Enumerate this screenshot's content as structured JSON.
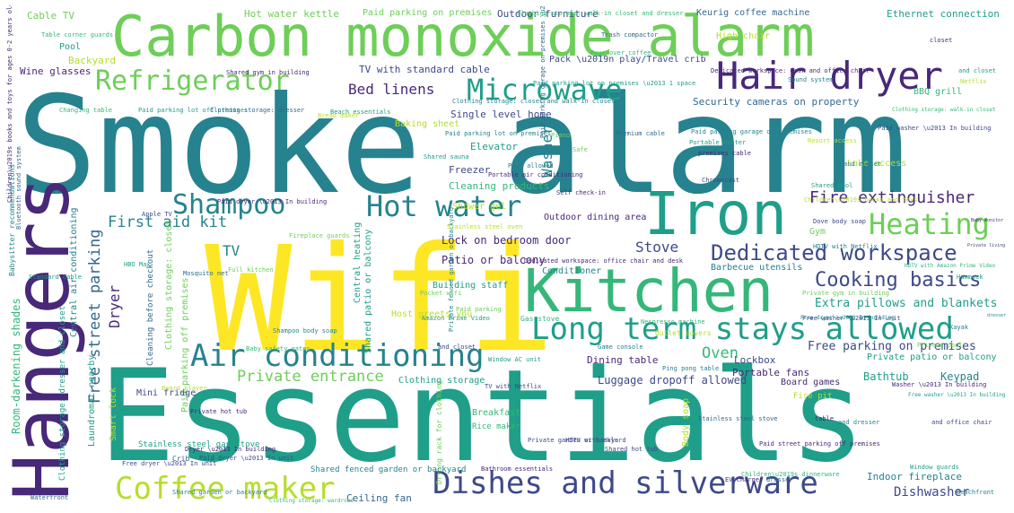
{
  "colors": {
    "c1": "#fde725",
    "c2": "#b5de2b",
    "c3": "#6ece58",
    "c4": "#35b779",
    "c5": "#1f9e89",
    "c6": "#26828e",
    "c7": "#31688e",
    "c8": "#3e4989",
    "c9": "#482878",
    "c10": "#440154"
  },
  "words": [
    {
      "text": "Smoke alarm",
      "color": "c6"
    },
    {
      "text": "Essentials",
      "color": "c5"
    },
    {
      "text": "Wifi",
      "color": "c1"
    },
    {
      "text": "Carbon monoxide alarm",
      "color": "c3"
    },
    {
      "text": "Hangers",
      "color": "c9"
    },
    {
      "text": "Kitchen",
      "color": "c4"
    },
    {
      "text": "Iron",
      "color": "c5"
    },
    {
      "text": "Hair dryer",
      "color": "c9"
    },
    {
      "text": "Long term stays allowed",
      "color": "c5"
    },
    {
      "text": "Dishes and silverware",
      "color": "c8"
    },
    {
      "text": "Air conditioning",
      "color": "c6"
    },
    {
      "text": "Coffee maker",
      "color": "c2"
    },
    {
      "text": "Hot water",
      "color": "c6"
    },
    {
      "text": "Shampoo",
      "color": "c6"
    },
    {
      "text": "Heating",
      "color": "c3"
    },
    {
      "text": "Microwave",
      "color": "c5"
    },
    {
      "text": "Refrigerator",
      "color": "c3"
    },
    {
      "text": "Dedicated workspace",
      "color": "c8"
    },
    {
      "text": "Cooking basics",
      "color": "c8"
    },
    {
      "text": "Fire extinguisher",
      "color": "c9"
    },
    {
      "text": "Free street parking",
      "color": "c7"
    },
    {
      "text": "First aid kit",
      "color": "c6"
    },
    {
      "text": "Private entrance",
      "color": "c3"
    },
    {
      "text": "Bed linens",
      "color": "c9"
    },
    {
      "text": "Oven",
      "color": "c4"
    },
    {
      "text": "Stove",
      "color": "c8"
    },
    {
      "text": "Washer",
      "color": "c6"
    },
    {
      "text": "Dryer",
      "color": "c9"
    },
    {
      "text": "TV",
      "color": "c6"
    },
    {
      "text": "Dishwasher",
      "color": "c8"
    },
    {
      "text": "Extra pillows and blankets",
      "color": "c5"
    },
    {
      "text": "Free parking on premises",
      "color": "c8"
    },
    {
      "text": "Lock on bedroom door",
      "color": "c9"
    },
    {
      "text": "Patio or balcony",
      "color": "c9"
    },
    {
      "text": "Room-darkening shades",
      "color": "c4"
    },
    {
      "text": "Bathtub",
      "color": "c5"
    },
    {
      "text": "Keypad",
      "color": "c6"
    },
    {
      "text": "Luggage dropoff allowed",
      "color": "c8"
    },
    {
      "text": "Dining table",
      "color": "c9"
    },
    {
      "text": "Lockbox",
      "color": "c8"
    },
    {
      "text": "Portable fans",
      "color": "c9"
    },
    {
      "text": "Private patio or balcony",
      "color": "c5"
    },
    {
      "text": "Board games",
      "color": "c9"
    },
    {
      "text": "Indoor fireplace",
      "color": "c6"
    },
    {
      "text": "Ceiling fan",
      "color": "c7"
    },
    {
      "text": "Cleaning products",
      "color": "c4"
    },
    {
      "text": "Freezer",
      "color": "c8"
    },
    {
      "text": "Elevator",
      "color": "c5"
    },
    {
      "text": "Conditioner",
      "color": "c6"
    },
    {
      "text": "Security cameras on property",
      "color": "c7"
    },
    {
      "text": "Single level home",
      "color": "c8"
    },
    {
      "text": "Outdoor furniture",
      "color": "c8"
    },
    {
      "text": "Ethernet connection",
      "color": "c5"
    },
    {
      "text": "Keurig coffee machine",
      "color": "c7"
    },
    {
      "text": "Paid parking on premises",
      "color": "c3"
    },
    {
      "text": "Hot water kettle",
      "color": "c3"
    },
    {
      "text": "Cable TV",
      "color": "c3"
    },
    {
      "text": "Pool",
      "color": "c5"
    },
    {
      "text": "Backyard",
      "color": "c2"
    },
    {
      "text": "Wine glasses",
      "color": "c9"
    },
    {
      "text": "TV with standard cable",
      "color": "c8"
    },
    {
      "text": "Pack \\u2019n play/Travel crib",
      "color": "c8"
    },
    {
      "text": "High chair",
      "color": "c2"
    },
    {
      "text": "BBQ grill",
      "color": "c4"
    },
    {
      "text": "Baking sheet",
      "color": "c2"
    },
    {
      "text": "Toaster",
      "color": "c6"
    },
    {
      "text": "Outdoor dining area",
      "color": "c9"
    },
    {
      "text": "Shower gel",
      "color": "c2"
    },
    {
      "text": "Gym",
      "color": "c3"
    },
    {
      "text": "Lake access",
      "color": "c2"
    },
    {
      "text": "Barbecue utensils",
      "color": "c6"
    },
    {
      "text": "Central heating",
      "color": "c5"
    },
    {
      "text": "Central air conditioning",
      "color": "c6"
    },
    {
      "text": "Shared patio or balcony",
      "color": "c5"
    },
    {
      "text": "Host greets you",
      "color": "c2"
    },
    {
      "text": "Building staff",
      "color": "c5"
    },
    {
      "text": "Paid parking off premises",
      "color": "c3"
    },
    {
      "text": "Clothing storage: closet",
      "color": "c3"
    },
    {
      "text": "Cleaning before checkout",
      "color": "c7"
    },
    {
      "text": "Laundromat nearby",
      "color": "c5"
    },
    {
      "text": "Mini fridge",
      "color": "c8"
    },
    {
      "text": "Smart lock",
      "color": "c2"
    },
    {
      "text": "Clothing storage",
      "color": "c5"
    },
    {
      "text": "Breakfast",
      "color": "c4"
    },
    {
      "text": "Rice maker",
      "color": "c4"
    },
    {
      "text": "Body soap",
      "color": "c2"
    },
    {
      "text": "Fire pit",
      "color": "c2"
    },
    {
      "text": "Stainless steel gas stove",
      "color": "c5"
    },
    {
      "text": "Shared fenced garden or backyard",
      "color": "c6"
    },
    {
      "text": "Clothing storage: dresser and closet",
      "color": "c5"
    },
    {
      "text": "Crib",
      "color": "c7"
    },
    {
      "text": "Drying rack for clothing",
      "color": "c3"
    },
    {
      "text": "Gas stove",
      "color": "c4"
    },
    {
      "text": "Window AC unit",
      "color": "c5"
    },
    {
      "text": "Private fenced garden or backyard",
      "color": "c6"
    },
    {
      "text": "Outlet covers",
      "color": "c2"
    },
    {
      "text": "Babysitter recommendations",
      "color": "c6"
    },
    {
      "text": "Changing table",
      "color": "c4"
    },
    {
      "text": "Netflix",
      "color": "c2"
    },
    {
      "text": "Paid parking garage on premises",
      "color": "c9"
    },
    {
      "text": "Free washer \\u2013 In unit",
      "color": "c8"
    },
    {
      "text": "Clothing storage: walk-in closet",
      "color": "c4"
    },
    {
      "text": "Paid parking lot off premises",
      "color": "c5"
    },
    {
      "text": "Shared gym in building",
      "color": "c9"
    },
    {
      "text": "Free dryer \\u2013 In unit",
      "color": "c8"
    },
    {
      "text": "Portable heater",
      "color": "c5"
    },
    {
      "text": "Self check-in",
      "color": "c9"
    },
    {
      "text": "Safe",
      "color": "c3"
    },
    {
      "text": "Pets allowed",
      "color": "c6"
    },
    {
      "text": "Baby monitor",
      "color": "c9"
    },
    {
      "text": "Children\\u2019s books and toys",
      "color": "c2"
    },
    {
      "text": "Stainless steel oven",
      "color": "c2"
    },
    {
      "text": "Fireplace guards",
      "color": "c3"
    },
    {
      "text": "Apple TV",
      "color": "c8"
    },
    {
      "text": "HBO Max",
      "color": "c5"
    },
    {
      "text": "Bluetooth sound system",
      "color": "c7"
    },
    {
      "text": "Baby safety gates",
      "color": "c4"
    },
    {
      "text": "Game console",
      "color": "c6"
    },
    {
      "text": "Ping pong table",
      "color": "c6"
    },
    {
      "text": "Shared hot tub",
      "color": "c8"
    },
    {
      "text": "Private hot tub",
      "color": "c9"
    },
    {
      "text": "Bathroom essentials",
      "color": "c9"
    },
    {
      "text": "Beach essentials",
      "color": "c5"
    },
    {
      "text": "Board player",
      "color": "c2"
    },
    {
      "text": "Nespresso machine",
      "color": "c4"
    },
    {
      "text": "Children\\u2019s dinnerware",
      "color": "c4"
    },
    {
      "text": "Beachfront",
      "color": "c6"
    },
    {
      "text": "Waterfront",
      "color": "c7"
    },
    {
      "text": "Shared sauna",
      "color": "c5"
    },
    {
      "text": "Paid dryer \\u2013 In building",
      "color": "c9"
    },
    {
      "text": "Table corner guards",
      "color": "c4"
    },
    {
      "text": "Trash compactor",
      "color": "c7"
    },
    {
      "text": "Pour-over coffee",
      "color": "c4"
    },
    {
      "text": "Bread maker",
      "color": "c2"
    },
    {
      "text": "Chromecast",
      "color": "c8"
    },
    {
      "text": "Piano",
      "color": "c3"
    },
    {
      "text": "Pocket wifi",
      "color": "c3"
    },
    {
      "text": "Amazon Prime Video",
      "color": "c5"
    },
    {
      "text": "HDTV with Netflix",
      "color": "c6"
    },
    {
      "text": "Full kitchen",
      "color": "c3"
    },
    {
      "text": "Hammock",
      "color": "c5"
    },
    {
      "text": "EV charger",
      "color": "c9"
    },
    {
      "text": "HDTV with Hulu",
      "color": "c8"
    },
    {
      "text": "Mosquito net",
      "color": "c7"
    },
    {
      "text": "Kayak",
      "color": "c6"
    },
    {
      "text": "Dedicated workspace: desk and office chair",
      "color": "c9"
    },
    {
      "text": "Dedicated workspace: office chair and desk",
      "color": "c9"
    },
    {
      "text": "Clothing storage: closet and walk-in closet",
      "color": "c6"
    },
    {
      "text": "Paid parking garage off premises",
      "color": "c6"
    },
    {
      "text": "Paid street parking off premises",
      "color": "c9"
    },
    {
      "text": "Free dryer \\u2013 In building",
      "color": "c6"
    },
    {
      "text": "Paid dryer \\u2013 In unit",
      "color": "c8"
    },
    {
      "text": "Dryer \\u2013 In building",
      "color": "c9"
    },
    {
      "text": "Washer \\u2013 In building",
      "color": "c9"
    },
    {
      "text": "Paid washer \\u2013 In building",
      "color": "c8"
    },
    {
      "text": "Free washer \\u2013 In building",
      "color": "c5"
    },
    {
      "text": "Portable air conditioning",
      "color": "c9"
    },
    {
      "text": "Private living room",
      "color": "c8"
    },
    {
      "text": "Private gym in building",
      "color": "c3"
    },
    {
      "text": "Shared garden or backyard",
      "color": "c6"
    },
    {
      "text": "Private garden or backyard",
      "color": "c8"
    },
    {
      "text": "Clothing storage: wardrobe",
      "color": "c4"
    },
    {
      "text": "Clothing storage: dresser",
      "color": "c7"
    },
    {
      "text": "Shampoo body soap",
      "color": "c6"
    },
    {
      "text": "Dove body soap",
      "color": "c8"
    },
    {
      "text": "Paid parking lot on premises",
      "color": "c6"
    },
    {
      "text": "Paid parking lot on premises \\u2013 1 space",
      "color": "c5"
    },
    {
      "text": "Paid parking garage on premises \\u2013 1 space",
      "color": "c7"
    },
    {
      "text": "Children\\u2019s books and toys for ages 0-2 years old",
      "color": "c9"
    },
    {
      "text": "Clothing storage: walk-in closet and dresser",
      "color": "c4"
    },
    {
      "text": "Resort access",
      "color": "c2"
    },
    {
      "text": "Sound system",
      "color": "c6"
    },
    {
      "text": "Premium cable",
      "color": "c7"
    },
    {
      "text": "Window guards",
      "color": "c5"
    },
    {
      "text": "Standard cable",
      "color": "c5"
    },
    {
      "text": "Private pool",
      "color": "c3"
    },
    {
      "text": "HDTV with Amazon Prime Video",
      "color": "c4"
    },
    {
      "text": "and closet",
      "color": "c8"
    },
    {
      "text": "table",
      "color": "c9"
    },
    {
      "text": "and dresser",
      "color": "c6"
    },
    {
      "text": "and office chair",
      "color": "c8"
    },
    {
      "text": "and closet",
      "color": "c6"
    },
    {
      "text": "dresser",
      "color": "c6"
    },
    {
      "text": "closet",
      "color": "c9"
    },
    {
      "text": "and closet",
      "color": "c5"
    },
    {
      "text": "TV with Netflix",
      "color": "c8"
    },
    {
      "text": "Shared pool",
      "color": "c5"
    },
    {
      "text": "Stainless steel stove",
      "color": "c7"
    },
    {
      "text": "Paid parking",
      "color": "c3"
    },
    {
      "text": "premises cable",
      "color": "c9"
    },
    {
      "text": "dresser",
      "color": "c7"
    }
  ]
}
